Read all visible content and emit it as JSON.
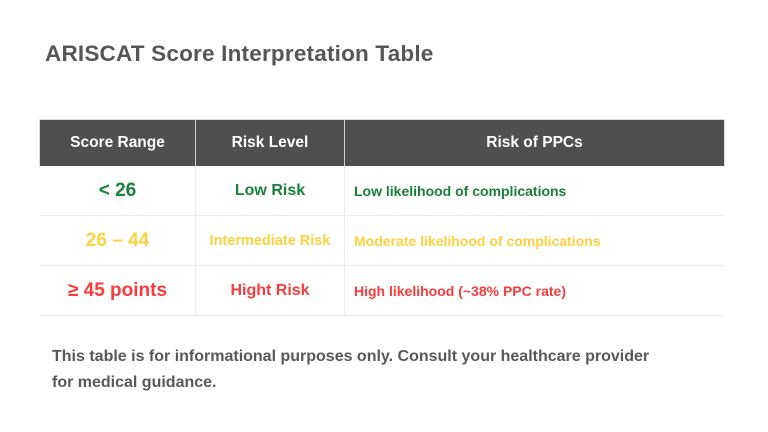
{
  "title": "ARISCAT Score Interpretation Table",
  "chart_data": {
    "type": "table",
    "title": "ARISCAT Score Interpretation Table",
    "columns": [
      "Score Range",
      "Risk Level",
      "Risk of PPCs"
    ],
    "rows": [
      [
        "< 26",
        "Low Risk",
        "Low likelihood of complications"
      ],
      [
        "26 – 44",
        "Intermediate Risk",
        "Moderate likelihood of complications"
      ],
      [
        "≥ 45 points",
        "Hight Risk",
        "High likelihood (~38% PPC rate)"
      ]
    ],
    "row_colors": [
      "#17813d",
      "#ffd13e",
      "#fa3b3b"
    ],
    "legend_position": "none",
    "grid": "light horizontal and vertical cell dividers",
    "note": "This table is for informational purposes only. Consult your healthcare provider for medical guidance."
  },
  "disclaimer": {
    "lines": [
      "This table is for informational purposes only. Consult your healthcare provider",
      "for medical guidance."
    ]
  },
  "colors": {
    "header_bg": "#4f4f4f",
    "header_text": "#ffffff",
    "title_text": "#565656",
    "note_text": "#585858",
    "row_divider": "#ececec",
    "header_divider": "#cfcfcf",
    "low_risk_green": "#17813d",
    "intermediate_risk_yellow": "#ffd13e",
    "high_risk_red": "#fa3b3b"
  }
}
